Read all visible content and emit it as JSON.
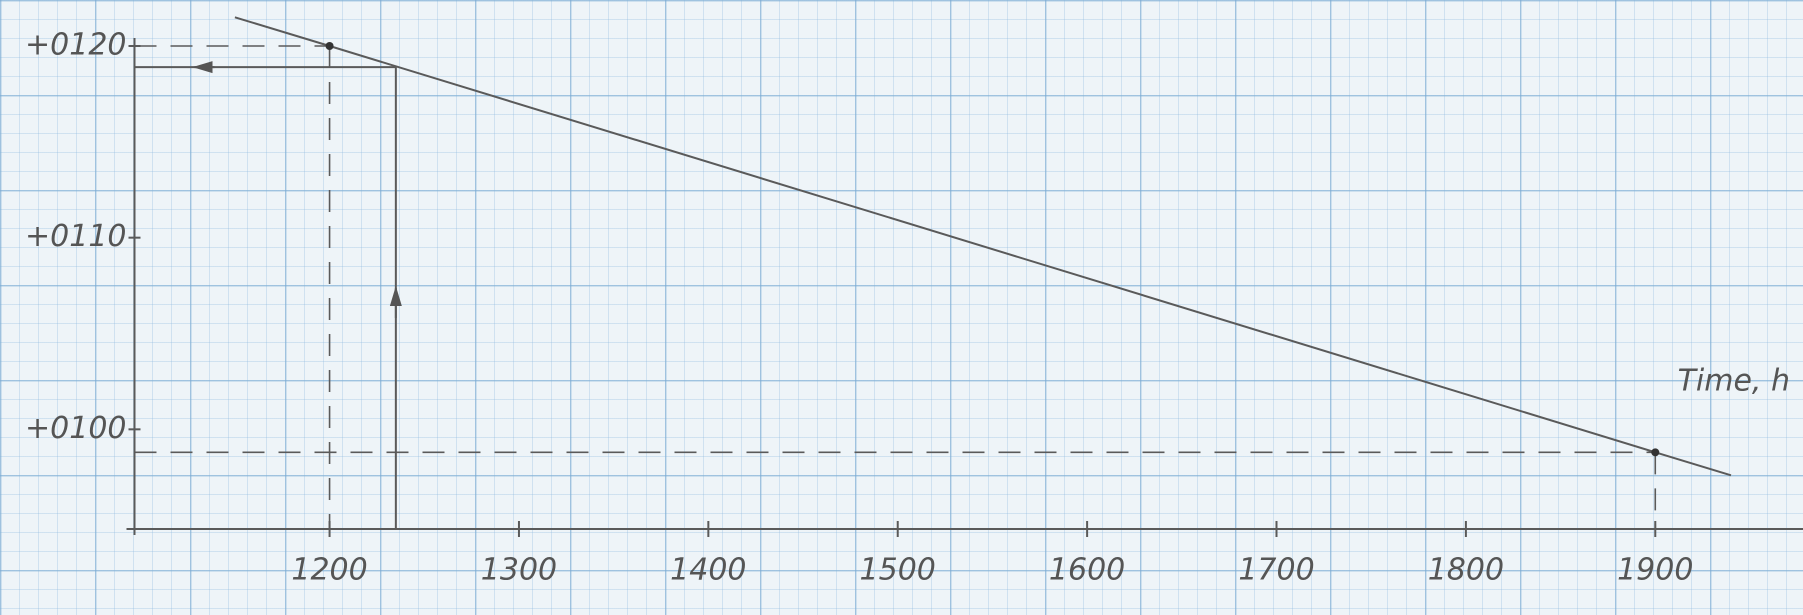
{
  "chart_data": {
    "type": "line",
    "x_label": "Time, h",
    "xlim": [
      1097,
      1978
    ],
    "ylim": [
      94.8,
      122.4
    ],
    "xticks": [
      1200,
      1300,
      1400,
      1500,
      1600,
      1700,
      1800,
      1900
    ],
    "yticks": [
      {
        "value": 100,
        "label": "+0100"
      },
      {
        "value": 110,
        "label": "+0110"
      },
      {
        "value": 120,
        "label": "+0120"
      }
    ],
    "series": [
      {
        "color": "#5a5a5a",
        "x": [
          1150,
          1200,
          1900,
          1940
        ],
        "values": [
          121.5,
          120,
          98.8,
          97.6
        ]
      }
    ],
    "points": {
      "x": [
        1200,
        1900
      ],
      "values": [
        120,
        98.8
      ]
    },
    "readout": {
      "x": 1235,
      "value": 118.9
    }
  }
}
